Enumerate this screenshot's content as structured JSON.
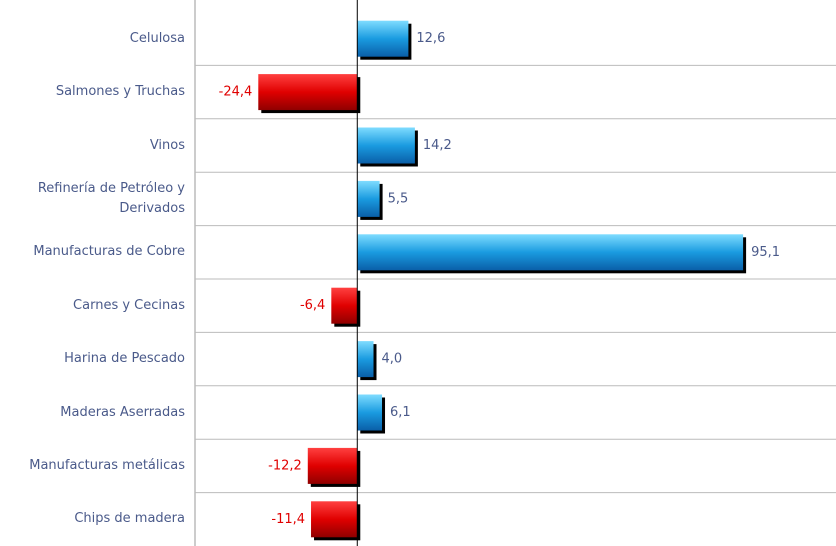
{
  "chart_data": {
    "type": "hbar",
    "categories": [
      "Celulosa",
      "Salmones y Truchas",
      "Vinos",
      "Refinería de Petróleo y Derivados",
      "Manufacturas de Cobre",
      "Carnes y Cecinas",
      "Harina de Pescado",
      "Maderas Aserradas",
      "Manufacturas metálicas",
      "Chips de madera"
    ],
    "values": [
      12.6,
      -24.4,
      14.2,
      5.5,
      95.1,
      -6.4,
      4.0,
      6.1,
      -12.2,
      -11.4
    ],
    "value_labels": [
      "12,6",
      "-24,4",
      "14,2",
      "5,5",
      "95,1",
      "-6,4",
      "4,0",
      "6,1",
      "-12,2",
      "-11,4"
    ],
    "positive_color": "#1a9be0",
    "negative_color": "#e00000",
    "xlim": [
      -40,
      118
    ]
  }
}
